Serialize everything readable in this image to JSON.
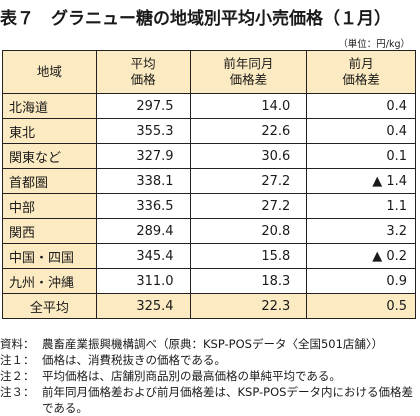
{
  "title": "表７　グラニュー糖の地域別平均小売価格（１月）",
  "unit": "（単位：円/kg）",
  "table": {
    "headers": [
      "地域",
      "平均\n価格",
      "前年同月\n価格差",
      "前月\n価格差"
    ],
    "rows": [
      {
        "region": "北海道",
        "price": "297.5",
        "yoy": "14.0",
        "mom": "0.4"
      },
      {
        "region": "東北",
        "price": "355.3",
        "yoy": "22.6",
        "mom": "0.4"
      },
      {
        "region": "関東など",
        "price": "327.9",
        "yoy": "30.6",
        "mom": "0.1"
      },
      {
        "region": "首都圏",
        "price": "338.1",
        "yoy": "27.2",
        "mom": "▲ 1.4"
      },
      {
        "region": "中部",
        "price": "336.5",
        "yoy": "27.2",
        "mom": "1.1"
      },
      {
        "region": "関西",
        "price": "289.4",
        "yoy": "20.8",
        "mom": "3.2"
      },
      {
        "region": "中国・四国",
        "price": "345.4",
        "yoy": "15.8",
        "mom": "▲ 0.2"
      },
      {
        "region": "九州・沖縄",
        "price": "311.0",
        "yoy": "18.3",
        "mom": "0.9"
      }
    ],
    "total": {
      "region": "全平均",
      "price": "325.4",
      "yoy": "22.3",
      "mom": "0.5"
    }
  },
  "notes": [
    {
      "label": "資料：",
      "text": "農畜産業振興機構調べ（原典：KSP-POSデータ〈全国501店舗〉）"
    },
    {
      "label": "注１：",
      "text": "価格は、消費税抜きの価格である。"
    },
    {
      "label": "注２：",
      "text": "平均価格は、店舗別商品別の最高価格の単純平均である。"
    },
    {
      "label": "注３：",
      "text": "前年同月価格差および前月価格差は、KSP-POSデータ内における価格差である。"
    }
  ],
  "colors": {
    "header_bg": "#fcebc2",
    "border": "#222222"
  }
}
